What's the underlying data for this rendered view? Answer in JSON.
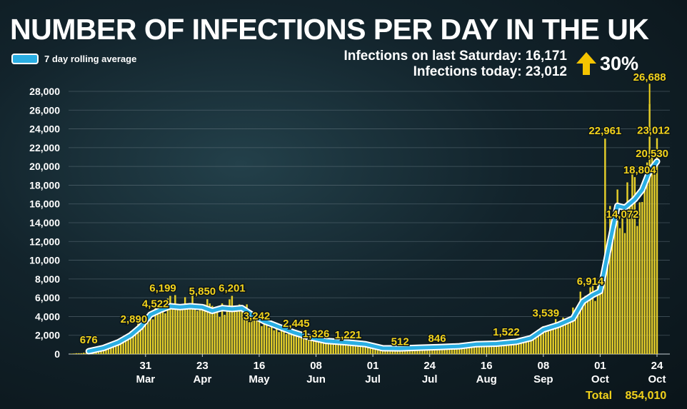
{
  "title": "NUMBER OF INFECTIONS PER DAY IN THE UK",
  "legend": {
    "label": "7 day rolling average",
    "color": "#2aaee3"
  },
  "stats": {
    "saturday_label": "Infections on last Saturday: 16,171",
    "today_label": "Infections today: 23,012",
    "change_label": "30%",
    "arrow_icon": "up-arrow-icon",
    "arrow_color": "#f5c400"
  },
  "footer": {
    "total_label": "Total",
    "total_value": "854,010"
  },
  "chart_data": {
    "type": "bar",
    "bar_color": "#e6cf2a",
    "line_color": "#2aaee3",
    "label_color": "#f2d21b",
    "grid": true,
    "ylim": [
      0,
      28000
    ],
    "yticks": [
      0,
      2000,
      4000,
      6000,
      8000,
      10000,
      12000,
      14000,
      16000,
      18000,
      20000,
      22000,
      24000,
      26000,
      28000
    ],
    "ytick_labels": [
      "0",
      "2,000",
      "4,000",
      "6,000",
      "8,000",
      "10,000",
      "12,000",
      "14,000",
      "16,000",
      "18,000",
      "20,000",
      "22,000",
      "24,000",
      "26,000",
      "28,000"
    ],
    "x_start": "2020-03-01",
    "x_end": "2020-10-24",
    "x_ticks": [
      {
        "date": "2020-03-31",
        "day": "31",
        "month": "Mar"
      },
      {
        "date": "2020-04-23",
        "day": "23",
        "month": "Apr"
      },
      {
        "date": "2020-05-16",
        "day": "16",
        "month": "May"
      },
      {
        "date": "2020-06-08",
        "day": "08",
        "month": "Jun"
      },
      {
        "date": "2020-07-01",
        "day": "01",
        "month": "Jul"
      },
      {
        "date": "2020-07-24",
        "day": "24",
        "month": "Jul"
      },
      {
        "date": "2020-08-16",
        "day": "16",
        "month": "Aug"
      },
      {
        "date": "2020-09-08",
        "day": "08",
        "month": "Sep"
      },
      {
        "date": "2020-10-01",
        "day": "01",
        "month": "Oct"
      },
      {
        "date": "2020-10-24",
        "day": "24",
        "month": "Oct"
      }
    ],
    "daily_anchors": [
      [
        "2020-03-01",
        50
      ],
      [
        "2020-03-08",
        150
      ],
      [
        "2020-03-14",
        600
      ],
      [
        "2020-03-20",
        1200
      ],
      [
        "2020-03-25",
        2200
      ],
      [
        "2020-03-29",
        3000
      ],
      [
        "2020-04-03",
        4500
      ],
      [
        "2020-04-08",
        5200
      ],
      [
        "2020-04-12",
        5500
      ],
      [
        "2020-04-18",
        5600
      ],
      [
        "2020-04-24",
        5000
      ],
      [
        "2020-04-30",
        4800
      ],
      [
        "2020-05-06",
        5200
      ],
      [
        "2020-05-12",
        4400
      ],
      [
        "2020-05-18",
        3400
      ],
      [
        "2020-05-24",
        2800
      ],
      [
        "2020-05-30",
        2300
      ],
      [
        "2020-06-05",
        1800
      ],
      [
        "2020-06-12",
        1400
      ],
      [
        "2020-06-20",
        1200
      ],
      [
        "2020-06-28",
        1000
      ],
      [
        "2020-07-05",
        650
      ],
      [
        "2020-07-12",
        600
      ],
      [
        "2020-07-20",
        700
      ],
      [
        "2020-07-28",
        780
      ],
      [
        "2020-08-05",
        850
      ],
      [
        "2020-08-12",
        1000
      ],
      [
        "2020-08-20",
        1100
      ],
      [
        "2020-08-28",
        1300
      ],
      [
        "2020-09-03",
        1800
      ],
      [
        "2020-09-08",
        2800
      ],
      [
        "2020-09-14",
        3300
      ],
      [
        "2020-09-20",
        4300
      ],
      [
        "2020-09-24",
        6500
      ],
      [
        "2020-09-28",
        6800
      ],
      [
        "2020-10-01",
        7000
      ],
      [
        "2020-10-04",
        13000
      ],
      [
        "2020-10-07",
        15000
      ],
      [
        "2020-10-10",
        14000
      ],
      [
        "2020-10-13",
        17000
      ],
      [
        "2020-10-16",
        16500
      ],
      [
        "2020-10-19",
        18000
      ],
      [
        "2020-10-22",
        21000
      ],
      [
        "2020-10-24",
        21000
      ]
    ],
    "spikes": [
      [
        "2020-04-10",
        6199
      ],
      [
        "2020-04-25",
        5850
      ],
      [
        "2020-05-05",
        6201
      ],
      [
        "2020-10-03",
        22961
      ],
      [
        "2020-10-08",
        17540
      ],
      [
        "2020-10-10",
        15166
      ],
      [
        "2020-10-14",
        19724
      ],
      [
        "2020-10-17",
        16171
      ],
      [
        "2020-10-21",
        26688
      ],
      [
        "2020-10-22",
        21242
      ],
      [
        "2020-10-24",
        23012
      ]
    ],
    "rolling_avg": [
      [
        "2020-03-08",
        300
      ],
      [
        "2020-03-14",
        650
      ],
      [
        "2020-03-20",
        1250
      ],
      [
        "2020-03-25",
        2000
      ],
      [
        "2020-03-29",
        2900
      ],
      [
        "2020-04-02",
        4200
      ],
      [
        "2020-04-06",
        4700
      ],
      [
        "2020-04-10",
        5100
      ],
      [
        "2020-04-14",
        5000
      ],
      [
        "2020-04-18",
        5100
      ],
      [
        "2020-04-23",
        5000
      ],
      [
        "2020-04-27",
        4600
      ],
      [
        "2020-05-01",
        4900
      ],
      [
        "2020-05-05",
        4800
      ],
      [
        "2020-05-09",
        4900
      ],
      [
        "2020-05-13",
        4200
      ],
      [
        "2020-05-18",
        3500
      ],
      [
        "2020-05-24",
        2900
      ],
      [
        "2020-05-30",
        2300
      ],
      [
        "2020-06-05",
        1800
      ],
      [
        "2020-06-12",
        1400
      ],
      [
        "2020-06-20",
        1250
      ],
      [
        "2020-06-28",
        1050
      ],
      [
        "2020-07-05",
        620
      ],
      [
        "2020-07-12",
        600
      ],
      [
        "2020-07-20",
        680
      ],
      [
        "2020-07-28",
        740
      ],
      [
        "2020-08-05",
        830
      ],
      [
        "2020-08-12",
        1050
      ],
      [
        "2020-08-20",
        1100
      ],
      [
        "2020-08-28",
        1300
      ],
      [
        "2020-09-03",
        1700
      ],
      [
        "2020-09-08",
        2600
      ],
      [
        "2020-09-14",
        3100
      ],
      [
        "2020-09-20",
        3800
      ],
      [
        "2020-09-24",
        5600
      ],
      [
        "2020-09-28",
        6300
      ],
      [
        "2020-10-01",
        6700
      ],
      [
        "2020-10-05",
        12000
      ],
      [
        "2020-10-08",
        15800
      ],
      [
        "2020-10-11",
        15600
      ],
      [
        "2020-10-15",
        16500
      ],
      [
        "2020-10-18",
        17500
      ],
      [
        "2020-10-21",
        19500
      ],
      [
        "2020-10-24",
        20530
      ]
    ],
    "annotations": [
      {
        "date": "2020-03-08",
        "value": 676,
        "label": "676",
        "dx": 0,
        "dy": 0,
        "leader": false
      },
      {
        "date": "2020-03-28",
        "value": 2890,
        "label": "2,890",
        "dx": -6,
        "dy": 0,
        "leader": false
      },
      {
        "date": "2020-04-04",
        "value": 4522,
        "label": "4,522",
        "dx": 0,
        "dy": 0,
        "leader": false
      },
      {
        "date": "2020-04-07",
        "value": 6199,
        "label": "6,199",
        "dx": 0,
        "dy": 0,
        "leader": false
      },
      {
        "date": "2020-04-23",
        "value": 5850,
        "label": "5,850",
        "dx": 0,
        "dy": 0,
        "leader": false
      },
      {
        "date": "2020-05-05",
        "value": 6201,
        "label": "6,201",
        "dx": 0,
        "dy": 0,
        "leader": false
      },
      {
        "date": "2020-05-15",
        "value": 3242,
        "label": "3,242",
        "dx": 0,
        "dy": 0,
        "leader": false
      },
      {
        "date": "2020-05-31",
        "value": 2445,
        "label": "2,445",
        "dx": 0,
        "dy": 0,
        "leader": false
      },
      {
        "date": "2020-06-08",
        "value": 1326,
        "label": "1,326",
        "dx": 0,
        "dy": 0,
        "leader": false
      },
      {
        "date": "2020-06-21",
        "value": 1221,
        "label": "1,221",
        "dx": 0,
        "dy": 0,
        "leader": false
      },
      {
        "date": "2020-07-12",
        "value": 512,
        "label": "512",
        "dx": 0,
        "dy": 0,
        "leader": false
      },
      {
        "date": "2020-07-27",
        "value": 846,
        "label": "846",
        "dx": 0,
        "dy": 0,
        "leader": false
      },
      {
        "date": "2020-08-24",
        "value": 1522,
        "label": "1,522",
        "dx": 0,
        "dy": 0,
        "leader": false
      },
      {
        "date": "2020-09-09",
        "value": 3539,
        "label": "3,539",
        "dx": 0,
        "dy": 0,
        "leader": false
      },
      {
        "date": "2020-09-27",
        "value": 6914,
        "label": "6,914",
        "dx": 0,
        "dy": 0,
        "leader": false
      },
      {
        "date": "2020-10-03",
        "value": 22961,
        "label": "22,961",
        "dx": 0,
        "dy": 0,
        "leader": false
      },
      {
        "date": "2020-10-10",
        "value": 14072,
        "label": "14,072",
        "dx": 0,
        "dy": 0,
        "leader": false
      },
      {
        "date": "2020-10-17",
        "value": 18804,
        "label": "18,804",
        "dx": 0,
        "dy": 0,
        "leader": false
      },
      {
        "date": "2020-10-22",
        "value": 20530,
        "label": "20,530",
        "dx": 0,
        "dy": 0,
        "leader": false
      },
      {
        "date": "2020-10-22",
        "value": 23012,
        "label": "23,012",
        "dx": 2,
        "dy": 0,
        "leader": false
      },
      {
        "date": "2020-10-21",
        "value": 26688,
        "label": "26,688",
        "dx": 0,
        "dy": 0,
        "leader": true
      }
    ]
  }
}
